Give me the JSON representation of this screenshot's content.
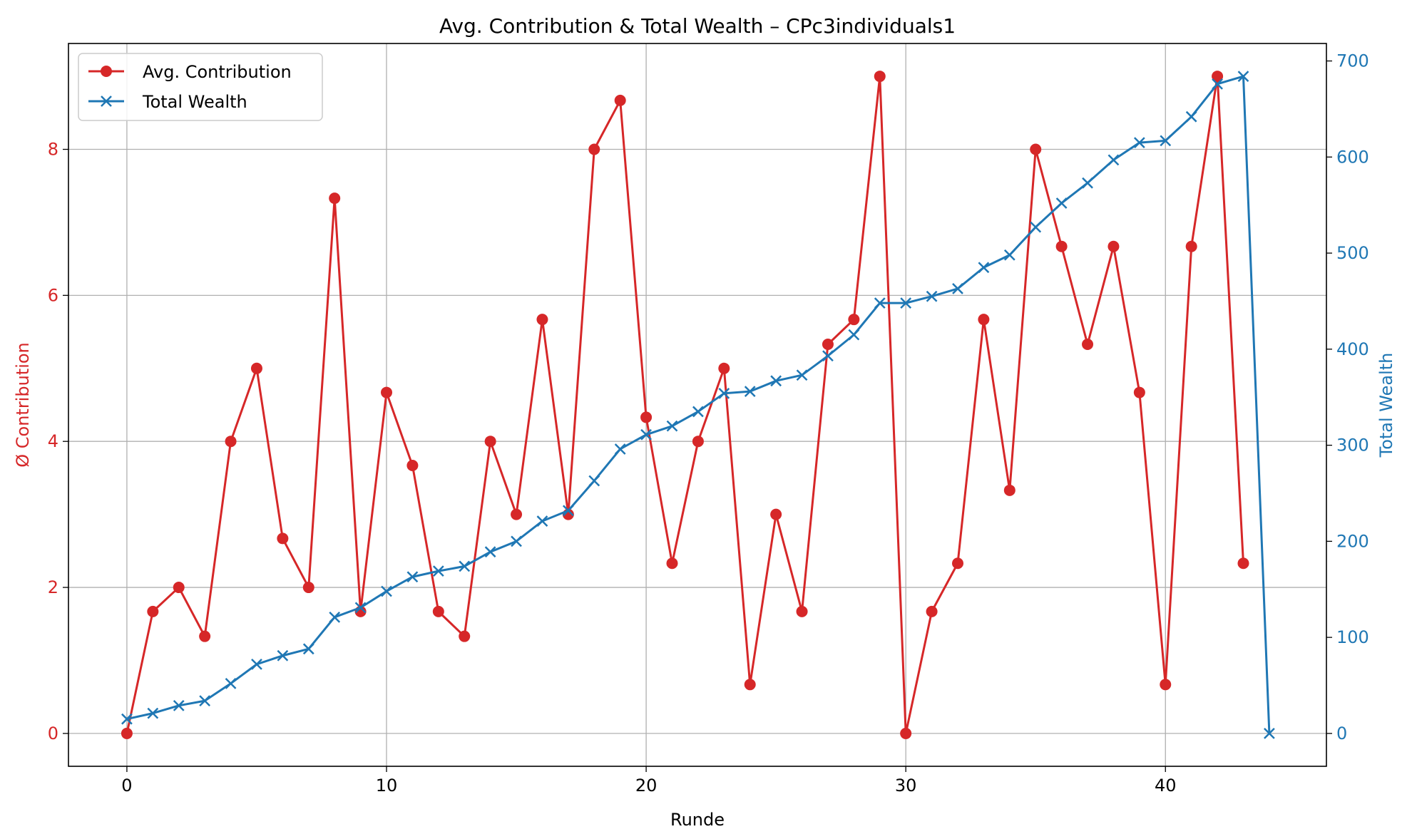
{
  "chart_data": {
    "type": "line",
    "title": "Avg. Contribution & Total Wealth – CPc3individuals1",
    "xlabel": "Runde",
    "ylabel_left": "Ø Contribution",
    "ylabel_right": "Total Wealth",
    "xlim": [
      -2.25,
      46.2
    ],
    "ylim_left": [
      -0.45,
      9.45
    ],
    "ylim_right": [
      -34.2,
      718.2
    ],
    "x_ticks": [
      0,
      10,
      20,
      30,
      40
    ],
    "y_ticks_left": [
      0,
      2,
      4,
      6,
      8
    ],
    "y_ticks_right": [
      0,
      100,
      200,
      300,
      400,
      500,
      600,
      700
    ],
    "grid": true,
    "legend_position": "upper left",
    "colors": {
      "contribution": "#d62728",
      "wealth": "#1f77b4",
      "grid": "#b0b0b0",
      "axis": "#000000"
    },
    "series": [
      {
        "name": "Avg. Contribution",
        "axis": "left",
        "marker": "circle",
        "x": [
          0,
          1,
          2,
          3,
          4,
          5,
          6,
          7,
          8,
          9,
          10,
          11,
          12,
          13,
          14,
          15,
          16,
          17,
          18,
          19,
          20,
          21,
          22,
          23,
          24,
          25,
          26,
          27,
          28,
          29,
          30,
          31,
          32,
          33,
          34,
          35,
          36,
          37,
          38,
          39,
          40,
          41,
          42,
          43
        ],
        "values": [
          0,
          1.67,
          2,
          1.33,
          4,
          5,
          2.67,
          2,
          7.33,
          1.67,
          4.67,
          3.67,
          1.67,
          1.33,
          4,
          3,
          5.67,
          3,
          8,
          8.67,
          4.33,
          2.33,
          4,
          5,
          0.67,
          3,
          1.67,
          5.33,
          5.67,
          9,
          0,
          1.67,
          2.33,
          5.67,
          3.33,
          8,
          6.67,
          5.33,
          6.67,
          4.67,
          0.67,
          6.67,
          9,
          2.33
        ]
      },
      {
        "name": "Total Wealth",
        "axis": "right",
        "marker": "x",
        "x": [
          0,
          1,
          2,
          3,
          4,
          5,
          6,
          7,
          8,
          9,
          10,
          11,
          12,
          13,
          14,
          15,
          16,
          17,
          18,
          19,
          20,
          21,
          22,
          23,
          24,
          25,
          26,
          27,
          28,
          29,
          30,
          31,
          32,
          33,
          34,
          35,
          36,
          37,
          38,
          39,
          40,
          41,
          42,
          43,
          44
        ],
        "values": [
          15,
          21,
          29,
          34,
          52,
          72,
          81,
          88,
          121,
          131,
          148,
          163,
          169,
          174,
          189,
          200,
          221,
          232,
          263,
          296,
          311,
          320,
          335,
          354,
          356,
          367,
          373,
          393,
          415,
          448,
          448,
          455,
          463,
          485,
          498,
          527,
          552,
          573,
          597,
          615,
          617,
          642,
          676,
          684,
          0
        ]
      }
    ]
  }
}
